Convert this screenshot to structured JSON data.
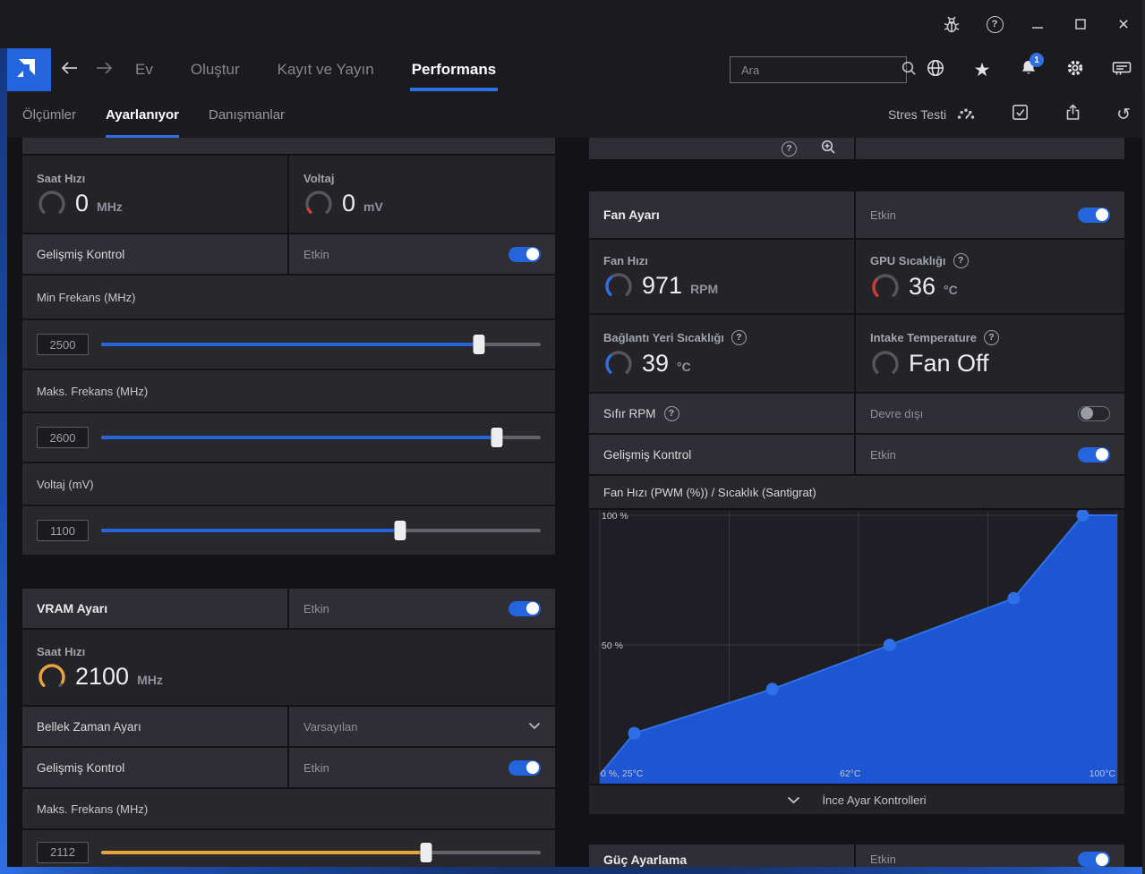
{
  "app": {
    "accent_blue": "#2f6fe4"
  },
  "navbar": {
    "items": [
      {
        "label": "Ev"
      },
      {
        "label": "Oluştur"
      },
      {
        "label": "Kayıt ve Yayın"
      },
      {
        "label": "Performans"
      }
    ],
    "search_placeholder": "Ara",
    "notification_badge": "1"
  },
  "subnav": {
    "items": [
      {
        "label": "Ölçümler"
      },
      {
        "label": "Ayarlanıyor"
      },
      {
        "label": "Danışmanlar"
      }
    ],
    "stress_test": "Stres Testi"
  },
  "left_panel": {
    "gpu_clock": {
      "label": "Saat Hızı",
      "value": "0",
      "unit": "MHz",
      "gauge": {
        "fraction": 0,
        "color": "#8f929c"
      }
    },
    "gpu_voltage": {
      "label": "Voltaj",
      "value": "0",
      "unit": "mV",
      "gauge": {
        "fraction": 0.07,
        "color": "#d33b30"
      }
    },
    "advanced_control": {
      "label": "Gelişmiş Kontrol",
      "status": "Etkin",
      "enabled": true
    },
    "min_freq": {
      "label": "Min Frekans (MHz)",
      "value": "2500",
      "percent": 86,
      "color": "#2465dd"
    },
    "max_freq": {
      "label": "Maks. Frekans (MHz)",
      "value": "2600",
      "percent": 90,
      "color": "#2465dd"
    },
    "voltage_slider": {
      "label": "Voltaj (mV)",
      "value": "1100",
      "percent": 68,
      "color": "#2465dd"
    },
    "vram": {
      "title": "VRAM Ayarı",
      "status": "Etkin",
      "enabled": true,
      "clock": {
        "label": "Saat Hızı",
        "value": "2100",
        "unit": "MHz",
        "gauge": {
          "fraction": 0.93,
          "color": "#e8a33d"
        }
      },
      "memory_timing": {
        "label": "Bellek Zaman Ayarı",
        "value": "Varsayılan"
      },
      "advanced_control": {
        "label": "Gelişmiş Kontrol",
        "status": "Etkin",
        "enabled": true
      },
      "max_freq": {
        "label": "Maks. Frekans (MHz)",
        "value": "2112",
        "percent": 74,
        "color": "#e8a33d"
      }
    }
  },
  "right_panel": {
    "fan": {
      "title": "Fan Ayarı",
      "status": "Etkin",
      "enabled": true,
      "fan_speed": {
        "label": "Fan Hızı",
        "value": "971",
        "unit": "RPM",
        "gauge": {
          "fraction": 0.34,
          "color": "#2f6fe4"
        }
      },
      "gpu_temp": {
        "label": "GPU Sıcaklığı",
        "value": "36",
        "unit": "°C",
        "gauge": {
          "fraction": 0.3,
          "color": "#d33b30"
        }
      },
      "junction_temp": {
        "label": "Bağlantı Yeri Sıcaklığı",
        "value": "39",
        "unit": "°C",
        "gauge": {
          "fraction": 0.33,
          "color": "#2f6fe4"
        }
      },
      "intake_temp": {
        "label": "Intake Temperature",
        "value": "Fan Off",
        "unit": "",
        "gauge": {
          "fraction": 0,
          "color": "#8f929c"
        }
      },
      "zero_rpm": {
        "label": "Sıfır RPM",
        "status": "Devre dışı",
        "enabled": false
      },
      "advanced_control": {
        "label": "Gelişmiş Kontrol",
        "status": "Etkin",
        "enabled": true
      },
      "fine_tuning_label": "İnce Ayar Kontrolleri"
    },
    "power": {
      "title": "Güç Ayarlama",
      "status": "Etkin",
      "enabled": true
    }
  },
  "chart_data": {
    "type": "area",
    "title": "Fan Hızı (PWM (%)) / Sıcaklık (Santigrat)",
    "xlim": [
      25,
      100
    ],
    "ylim": [
      0,
      100
    ],
    "points": [
      [
        30,
        16
      ],
      [
        50,
        33
      ],
      [
        67,
        50
      ],
      [
        85,
        68
      ],
      [
        95,
        100
      ]
    ],
    "x_tick_labels": [
      "0 %, 25°C",
      "62°C",
      "100°C"
    ],
    "y_tick_labels": [
      "100 %",
      "50 %"
    ],
    "grid": true,
    "legend": "none",
    "fill_color": "#1d55d3",
    "line_color": "#2e72ea",
    "point_color": "#2f6fe8",
    "grid_color": "#36363d"
  }
}
